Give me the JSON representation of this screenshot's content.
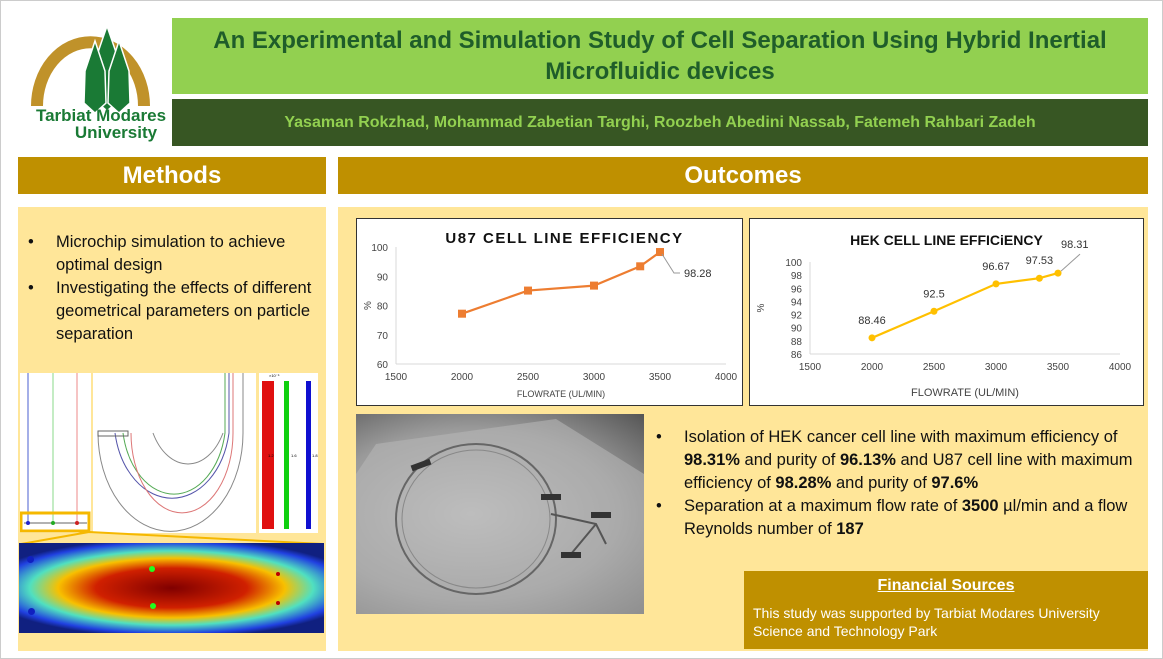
{
  "logo": {
    "text_line1": "Tarbiat Modares",
    "text_line2": "University",
    "colors": {
      "arch": "#c0922a",
      "tree": "#1a7a35"
    }
  },
  "title": "An Experimental and Simulation Study of Cell Separation Using Hybrid Inertial Microfluidic devices",
  "authors": "Yasaman Rokzhad, Mohammad Zabetian Targhi, Roozbeh Abedini Nassab, Fatemeh Rahbari Zadeh",
  "methods": {
    "header": "Methods",
    "bullets": [
      "Microchip simulation to achieve optimal design",
      "Investigating the effects of different geometrical parameters on particle separation"
    ],
    "colorbar_labels": [
      "1.2",
      "1.6",
      "1.8"
    ],
    "colorbar_exponent": "×10⁻⁵"
  },
  "outcomes": {
    "header": "Outcomes",
    "bullets": [
      [
        {
          "t": "Isolation of HEK cancer cell line with maximum efficiency of "
        },
        {
          "t": "98.31%",
          "b": true
        },
        {
          "t": " and purity of "
        },
        {
          "t": "96.13%",
          "b": true
        },
        {
          "t": " and U87 cell line with maximum efficiency of "
        },
        {
          "t": "98.28%",
          "b": true
        },
        {
          "t": " and purity of "
        },
        {
          "t": "97.6%",
          "b": true
        }
      ],
      [
        {
          "t": "Separation at a maximum flow rate of "
        },
        {
          "t": "3500",
          "b": true
        },
        {
          "t": " µl/min and a flow Reynolds number of "
        },
        {
          "t": "187",
          "b": true
        }
      ]
    ]
  },
  "financial": {
    "title": "Financial Sources",
    "text": "This study was supported by Tarbiat Modares University Science and Technology Park"
  },
  "colors": {
    "header": "#bf9000",
    "panel": "#ffe699",
    "title_bg": "#92d050",
    "authors_bg": "#375623"
  },
  "chart_data": [
    {
      "type": "line",
      "title": "U87 CELL LINE EFFICIENCY",
      "xlabel": "FLOWRATE (UL/MIN)",
      "ylabel": "%",
      "xlim": [
        1500,
        4000
      ],
      "ylim": [
        60,
        100
      ],
      "xticks": [
        1500,
        2000,
        2500,
        3000,
        3500,
        4000
      ],
      "yticks": [
        60,
        70,
        80,
        90,
        100
      ],
      "grid": false,
      "marker": "square",
      "color": "#ed7d31",
      "x": [
        2000,
        2500,
        3000,
        3350,
        3500
      ],
      "y": [
        77.2,
        85.1,
        86.8,
        93.4,
        98.28
      ],
      "data_labels": [
        null,
        null,
        null,
        null,
        "98.28"
      ]
    },
    {
      "type": "line",
      "title": "HEK CELL LINE EFFICiENCY",
      "xlabel": "FLOWRATE (UL/MIN)",
      "ylabel": "%",
      "xlim": [
        1500,
        4000
      ],
      "ylim": [
        86,
        100
      ],
      "xticks": [
        1500,
        2000,
        2500,
        3000,
        3500,
        4000
      ],
      "yticks": [
        86,
        88,
        90,
        92,
        94,
        96,
        98,
        100
      ],
      "grid": false,
      "marker": "circle",
      "color": "#ffc000",
      "x": [
        2000,
        2500,
        3000,
        3350,
        3500
      ],
      "y": [
        88.46,
        92.5,
        96.67,
        97.53,
        98.31
      ],
      "data_labels": [
        "88.46",
        "92.5",
        "96.67",
        "97.53",
        "98.31"
      ]
    }
  ]
}
